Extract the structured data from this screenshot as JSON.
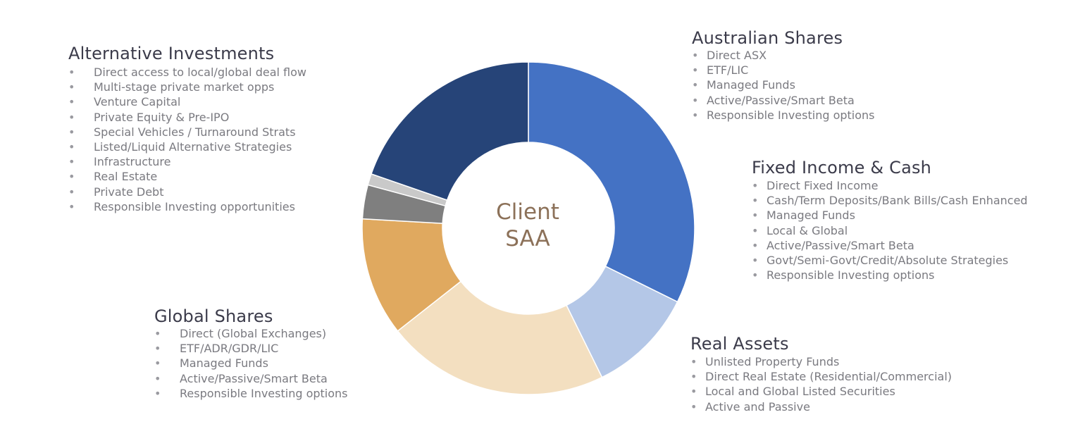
{
  "center": {
    "line1": "Client",
    "line2": "SAA"
  },
  "groups": {
    "alternative": {
      "title": "Alternative Investments",
      "items": [
        "Direct access to local/global deal flow",
        "Multi-stage private market opps",
        "Venture Capital",
        "Private Equity & Pre-IPO",
        "Special Vehicles / Turnaround Strats",
        "Listed/Liquid Alternative Strategies",
        "Infrastructure",
        "Real Estate",
        "Private Debt",
        "Responsible Investing opportunities"
      ]
    },
    "australian": {
      "title": "Australian Shares",
      "items": [
        "Direct ASX",
        "ETF/LIC",
        "Managed Funds",
        "Active/Passive/Smart Beta",
        "Responsible Investing options"
      ]
    },
    "fixed": {
      "title": "Fixed Income & Cash",
      "items": [
        "Direct Fixed Income",
        "Cash/Term Deposits/Bank Bills/Cash Enhanced",
        "Managed Funds",
        "Local & Global",
        "Active/Passive/Smart Beta",
        "Govt/Semi-Govt/Credit/Absolute Strategies",
        "Responsible Investing options"
      ]
    },
    "global": {
      "title": "Global Shares",
      "items": [
        "Direct (Global Exchanges)",
        "ETF/ADR/GDR/LIC",
        "Managed Funds",
        "Active/Passive/Smart Beta",
        "Responsible Investing options"
      ]
    },
    "real": {
      "title": "Real Assets",
      "items": [
        "Unlisted Property Funds",
        "Direct Real Estate (Residential/Commercial)",
        "Local and Global Listed Securities",
        "Active and Passive"
      ]
    }
  },
  "chart_data": {
    "type": "pie",
    "donut": true,
    "start_angle": "12 o'clock, clockwise",
    "slices": [
      {
        "value": 32.3,
        "color": "#4472c4"
      },
      {
        "value": 10.4,
        "color": "#b4c7e7"
      },
      {
        "value": 21.7,
        "color": "#f3dfc0"
      },
      {
        "value": 11.5,
        "color": "#e0a95f"
      },
      {
        "value": 3.3,
        "color": "#7f7f7f"
      },
      {
        "value": 1.1,
        "color": "#c9c9c9"
      },
      {
        "value": 19.7,
        "color": "#264478"
      }
    ]
  }
}
